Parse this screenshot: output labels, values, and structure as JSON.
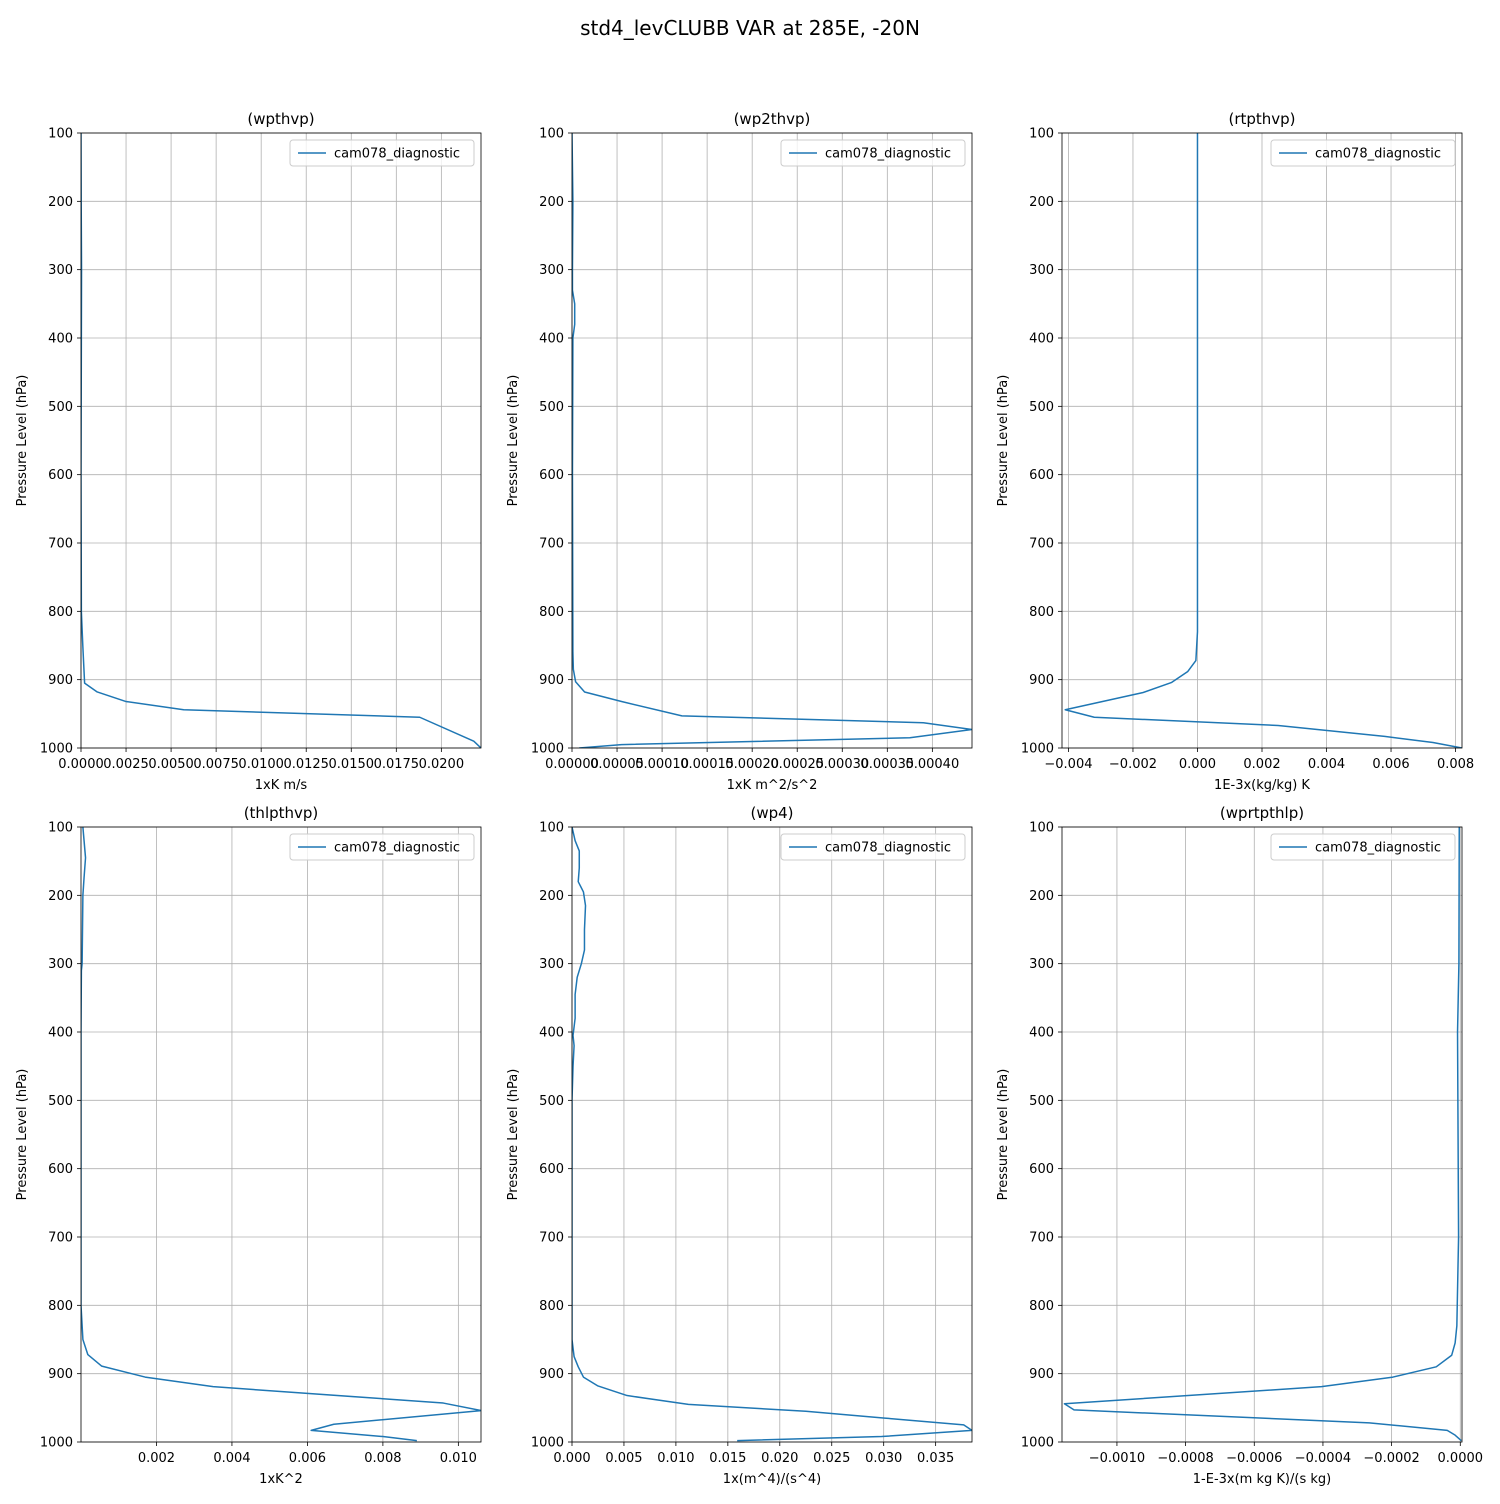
{
  "figure": {
    "title": "std4_levCLUBB VAR at 285E, -20N"
  },
  "chart_data": [
    {
      "type": "line",
      "title": "(wpthvp)",
      "xlabel": "1xK m/s",
      "ylabel": "Pressure Level (hPa)",
      "xlim": [
        0,
        0.0222
      ],
      "ylim": [
        1000,
        100
      ],
      "y_inverted": true,
      "grid": true,
      "legend_position": "upper right",
      "xticks": [
        0,
        0.0025,
        0.005,
        0.0075,
        0.01,
        0.0125,
        0.015,
        0.0175,
        0.02
      ],
      "xtick_labels": [
        "0.0000",
        "0.0025",
        "0.0050",
        "0.0075",
        "0.0100",
        "0.0125",
        "0.0150",
        "0.0175",
        "0.0200"
      ],
      "yticks": [
        100,
        200,
        300,
        400,
        500,
        600,
        700,
        800,
        900,
        1000
      ],
      "ytick_labels": [
        "100",
        "200",
        "300",
        "400",
        "500",
        "600",
        "700",
        "800",
        "900",
        "1000"
      ],
      "series": [
        {
          "name": "cam078_diagnostic",
          "color": "#1f77b4",
          "x": [
            0.0,
            1e-05,
            3e-05,
            2e-05,
            1e-05,
            0.0,
            1e-05,
            2e-05,
            0.0001,
            0.0002,
            0.0009,
            0.0025,
            0.0057,
            0.0188,
            0.0218,
            0.0222
          ],
          "y": [
            100,
            200,
            300,
            400,
            500,
            600,
            700,
            800,
            850,
            905,
            918,
            932,
            944,
            955,
            990,
            1000
          ]
        }
      ]
    },
    {
      "type": "line",
      "title": "(wp2thvp)",
      "xlabel": "1xK m^2/s^2",
      "ylabel": "Pressure Level (hPa)",
      "xlim": [
        0,
        0.000444
      ],
      "ylim": [
        1000,
        100
      ],
      "y_inverted": true,
      "grid": true,
      "legend_position": "upper right",
      "xticks": [
        0,
        5e-05,
        0.0001,
        0.00015,
        0.0002,
        0.00025,
        0.0003,
        0.00035,
        0.0004
      ],
      "xtick_labels": [
        "0.00000",
        "0.00005",
        "0.00010",
        "0.00015",
        "0.00020",
        "0.00025",
        "0.00030",
        "0.00035",
        "0.00040"
      ],
      "yticks": [
        100,
        200,
        300,
        400,
        500,
        600,
        700,
        800,
        900,
        1000
      ],
      "ytick_labels": [
        "100",
        "200",
        "300",
        "400",
        "500",
        "600",
        "700",
        "800",
        "900",
        "1000"
      ],
      "series": [
        {
          "name": "cam078_diagnostic",
          "color": "#1f77b4",
          "x": [
            0.0,
            1e-06,
            5e-07,
            5e-07,
            3e-06,
            3e-06,
            1e-06,
            5e-07,
            1e-06,
            1.5e-06,
            4e-06,
            1.4e-05,
            5.5e-05,
            0.000122,
            0.00039,
            0.000444,
            0.000375,
            5.5e-05,
            8e-06
          ],
          "y": [
            100,
            200,
            300,
            330,
            350,
            380,
            400,
            600,
            860,
            885,
            903,
            918,
            932,
            953,
            963,
            973,
            985,
            995,
            1000
          ]
        }
      ]
    },
    {
      "type": "line",
      "title": "(rtpthvp)",
      "xlabel": "1E-3x(kg/kg) K",
      "ylabel": "Pressure Level (hPa)",
      "xlim": [
        -0.0042,
        0.0082
      ],
      "ylim": [
        1000,
        100
      ],
      "y_inverted": true,
      "grid": true,
      "legend_position": "upper right",
      "xticks": [
        -0.004,
        -0.002,
        0.0,
        0.002,
        0.004,
        0.006,
        0.008
      ],
      "xtick_labels": [
        "−0.004",
        "−0.002",
        "0.000",
        "0.002",
        "0.004",
        "0.006",
        "0.008"
      ],
      "yticks": [
        100,
        200,
        300,
        400,
        500,
        600,
        700,
        800,
        900,
        1000
      ],
      "ytick_labels": [
        "100",
        "200",
        "300",
        "400",
        "500",
        "600",
        "700",
        "800",
        "900",
        "1000"
      ],
      "series": [
        {
          "name": "cam078_diagnostic",
          "color": "#1f77b4",
          "x": [
            0.0,
            0.0,
            0.0,
            0.0,
            -5e-05,
            -0.0003,
            -0.0008,
            -0.0017,
            -0.0041,
            -0.0032,
            0.0025,
            0.0058,
            0.0073,
            0.0082
          ],
          "y": [
            100,
            500,
            700,
            830,
            872,
            888,
            904,
            919,
            944,
            955,
            967,
            983,
            992,
            1000
          ]
        }
      ]
    },
    {
      "type": "line",
      "title": "(thlpthvp)",
      "xlabel": "1xK^2",
      "ylabel": "Pressure Level (hPa)",
      "xlim": [
        0,
        0.0106
      ],
      "ylim": [
        1000,
        100
      ],
      "y_inverted": true,
      "grid": true,
      "legend_position": "upper right",
      "xticks": [
        0.002,
        0.004,
        0.006,
        0.008,
        0.01
      ],
      "xtick_labels": [
        "0.002",
        "0.004",
        "0.006",
        "0.008",
        "0.010"
      ],
      "yticks": [
        100,
        200,
        300,
        400,
        500,
        600,
        700,
        800,
        900,
        1000
      ],
      "ytick_labels": [
        "100",
        "200",
        "300",
        "400",
        "500",
        "600",
        "700",
        "800",
        "900",
        "1000"
      ],
      "series": [
        {
          "name": "cam078_diagnostic",
          "color": "#1f77b4",
          "x": [
            5e-05,
            0.00012,
            8e-05,
            5e-05,
            3e-05,
            1e-05,
            0.0,
            0.0,
            5e-05,
            0.00018,
            0.00055,
            0.0017,
            0.0035,
            0.0096,
            0.0106,
            0.0067,
            0.0061,
            0.008,
            0.0089
          ],
          "y": [
            100,
            145,
            175,
            200,
            300,
            310,
            400,
            800,
            850,
            872,
            889,
            905,
            919,
            943,
            954,
            974,
            983,
            992,
            998
          ]
        }
      ]
    },
    {
      "type": "line",
      "title": "(wp4)",
      "xlabel": "1x(m^4)/(s^4)",
      "ylabel": "Pressure Level (hPa)",
      "xlim": [
        0,
        0.0385
      ],
      "ylim": [
        1000,
        100
      ],
      "y_inverted": true,
      "grid": true,
      "legend_position": "upper right",
      "xticks": [
        0,
        0.005,
        0.01,
        0.015,
        0.02,
        0.025,
        0.03,
        0.035
      ],
      "xtick_labels": [
        "0.000",
        "0.005",
        "0.010",
        "0.015",
        "0.020",
        "0.025",
        "0.030",
        "0.035"
      ],
      "yticks": [
        100,
        200,
        300,
        400,
        500,
        600,
        700,
        800,
        900,
        1000
      ],
      "ytick_labels": [
        "100",
        "200",
        "300",
        "400",
        "500",
        "600",
        "700",
        "800",
        "900",
        "1000"
      ],
      "series": [
        {
          "name": "cam078_diagnostic",
          "color": "#1f77b4",
          "x": [
            0.0,
            0.0003,
            0.0007,
            0.0007,
            0.0006,
            0.0011,
            0.0013,
            0.0012,
            0.0012,
            0.0009,
            0.0005,
            0.0003,
            0.0003,
            0.0001,
            0.0002,
            0.0001,
            0.0,
            0.0,
            0.0002,
            0.0006,
            0.0011,
            0.0025,
            0.0053,
            0.0112,
            0.0225,
            0.0301,
            0.0377,
            0.0385,
            0.0298,
            0.0159
          ],
          "y": [
            100,
            120,
            135,
            160,
            180,
            195,
            215,
            250,
            280,
            300,
            320,
            345,
            380,
            405,
            420,
            450,
            500,
            850,
            875,
            890,
            905,
            918,
            932,
            945,
            955,
            965,
            975,
            983,
            992,
            998
          ]
        }
      ]
    },
    {
      "type": "line",
      "title": "(wprtpthlp)",
      "xlabel": "1-E-3x(m kg K)/(s kg)",
      "ylabel": "Pressure Level (hPa)",
      "xlim": [
        -0.00116,
        5e-06
      ],
      "ylim": [
        1000,
        100
      ],
      "y_inverted": true,
      "grid": true,
      "legend_position": "upper right",
      "xticks": [
        -0.001,
        -0.0008,
        -0.0006,
        -0.0004,
        -0.0002,
        0.0
      ],
      "xtick_labels": [
        "−0.0010",
        "−0.0008",
        "−0.0006",
        "−0.0004",
        "−0.0002",
        "0.0000"
      ],
      "yticks": [
        100,
        200,
        300,
        400,
        500,
        600,
        700,
        800,
        900,
        1000
      ],
      "ytick_labels": [
        "100",
        "200",
        "300",
        "400",
        "500",
        "600",
        "700",
        "800",
        "900",
        "1000"
      ],
      "series": [
        {
          "name": "cam078_diagnostic",
          "color": "#1f77b4",
          "x": [
            -3e-06,
            -4e-06,
            -8e-06,
            -5e-06,
            -1e-05,
            -1.5e-05,
            -2.5e-05,
            -7e-05,
            -0.000196,
            -0.000404,
            -0.001153,
            -0.001125,
            -0.000265,
            -3.8e-05,
            -1.5e-05,
            3e-06
          ],
          "y": [
            100,
            300,
            400,
            700,
            830,
            855,
            873,
            890,
            905,
            919,
            944,
            953,
            972,
            983,
            990,
            998
          ]
        }
      ]
    }
  ]
}
